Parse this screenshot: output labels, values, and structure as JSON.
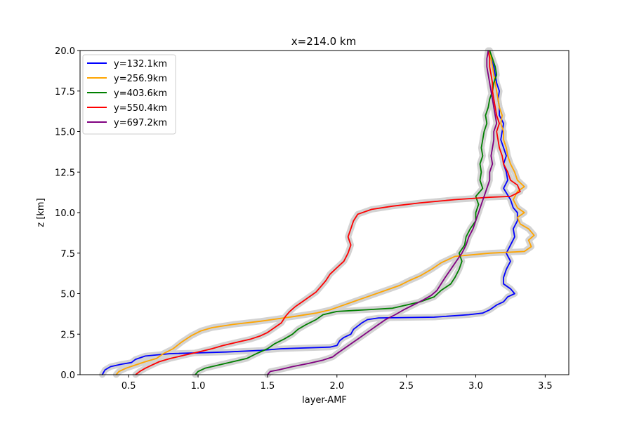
{
  "chart_data": {
    "type": "line",
    "title": "x=214.0 km",
    "xlabel": "layer-AMF",
    "ylabel": "z [km]",
    "xlim": [
      0.15,
      3.67
    ],
    "ylim": [
      0,
      20
    ],
    "xticks": [
      0.5,
      1.0,
      1.5,
      2.0,
      2.5,
      3.0,
      3.5
    ],
    "xtick_labels": [
      "0.5",
      "1.0",
      "1.5",
      "2.0",
      "2.5",
      "3.0",
      "3.5"
    ],
    "yticks": [
      0,
      2.5,
      5,
      7.5,
      10,
      12.5,
      15,
      17.5,
      20
    ],
    "ytick_labels": [
      "0.0",
      "2.5",
      "5.0",
      "7.5",
      "10.0",
      "12.5",
      "15.0",
      "17.5",
      "20.0"
    ],
    "grid": false,
    "legend_position": "top-left",
    "uncertainty_band_color": "#d3d3d3",
    "series": [
      {
        "name": "y=132.1km",
        "color": "#0000ff",
        "points": [
          [
            0.31,
            0
          ],
          [
            0.33,
            0.3
          ],
          [
            0.37,
            0.5
          ],
          [
            0.45,
            0.65
          ],
          [
            0.52,
            0.75
          ],
          [
            0.55,
            0.95
          ],
          [
            0.62,
            1.15
          ],
          [
            0.8,
            1.3
          ],
          [
            1.2,
            1.4
          ],
          [
            1.45,
            1.5
          ],
          [
            1.6,
            1.6
          ],
          [
            1.95,
            1.7
          ],
          [
            2.0,
            1.8
          ],
          [
            2.02,
            2.1
          ],
          [
            2.05,
            2.3
          ],
          [
            2.1,
            2.5
          ],
          [
            2.12,
            2.8
          ],
          [
            2.15,
            3.0
          ],
          [
            2.18,
            3.2
          ],
          [
            2.22,
            3.4
          ],
          [
            2.3,
            3.5
          ],
          [
            2.7,
            3.55
          ],
          [
            2.95,
            3.7
          ],
          [
            3.05,
            3.8
          ],
          [
            3.1,
            4.0
          ],
          [
            3.15,
            4.3
          ],
          [
            3.2,
            4.5
          ],
          [
            3.23,
            4.8
          ],
          [
            3.28,
            5.0
          ],
          [
            3.25,
            5.3
          ],
          [
            3.2,
            5.6
          ],
          [
            3.2,
            6.0
          ],
          [
            3.22,
            6.5
          ],
          [
            3.25,
            7.0
          ],
          [
            3.22,
            7.5
          ],
          [
            3.25,
            8.0
          ],
          [
            3.28,
            8.5
          ],
          [
            3.27,
            9.0
          ],
          [
            3.3,
            9.5
          ],
          [
            3.3,
            10.0
          ],
          [
            3.27,
            10.3
          ],
          [
            3.25,
            10.8
          ],
          [
            3.2,
            11.5
          ],
          [
            3.23,
            12.0
          ],
          [
            3.22,
            12.5
          ],
          [
            3.2,
            13.0
          ],
          [
            3.22,
            13.5
          ],
          [
            3.2,
            14.0
          ],
          [
            3.18,
            14.5
          ],
          [
            3.19,
            15.0
          ],
          [
            3.2,
            15.5
          ],
          [
            3.17,
            16.0
          ],
          [
            3.17,
            16.5
          ],
          [
            3.16,
            17.0
          ],
          [
            3.17,
            17.5
          ],
          [
            3.15,
            18.0
          ],
          [
            3.14,
            18.5
          ],
          [
            3.13,
            19.0
          ],
          [
            3.11,
            19.5
          ],
          [
            3.1,
            20.0
          ]
        ]
      },
      {
        "name": "y=256.9km",
        "color": "#ffa500",
        "points": [
          [
            0.41,
            0
          ],
          [
            0.43,
            0.2
          ],
          [
            0.48,
            0.4
          ],
          [
            0.55,
            0.6
          ],
          [
            0.62,
            0.8
          ],
          [
            0.7,
            1.0
          ],
          [
            0.75,
            1.3
          ],
          [
            0.82,
            1.6
          ],
          [
            0.88,
            2.0
          ],
          [
            0.95,
            2.4
          ],
          [
            1.02,
            2.7
          ],
          [
            1.1,
            2.9
          ],
          [
            1.25,
            3.1
          ],
          [
            1.45,
            3.3
          ],
          [
            1.7,
            3.6
          ],
          [
            1.85,
            3.8
          ],
          [
            1.95,
            4.0
          ],
          [
            2.05,
            4.3
          ],
          [
            2.15,
            4.6
          ],
          [
            2.25,
            4.9
          ],
          [
            2.35,
            5.2
          ],
          [
            2.45,
            5.5
          ],
          [
            2.52,
            5.8
          ],
          [
            2.6,
            6.1
          ],
          [
            2.68,
            6.5
          ],
          [
            2.75,
            6.9
          ],
          [
            2.85,
            7.3
          ],
          [
            3.1,
            7.5
          ],
          [
            3.35,
            7.6
          ],
          [
            3.4,
            7.9
          ],
          [
            3.38,
            8.3
          ],
          [
            3.42,
            8.6
          ],
          [
            3.38,
            9.0
          ],
          [
            3.32,
            9.3
          ],
          [
            3.3,
            9.7
          ],
          [
            3.35,
            10.0
          ],
          [
            3.3,
            10.3
          ],
          [
            3.27,
            10.8
          ],
          [
            3.3,
            11.3
          ],
          [
            3.35,
            11.6
          ],
          [
            3.3,
            12.0
          ],
          [
            3.28,
            12.5
          ],
          [
            3.25,
            13.0
          ],
          [
            3.23,
            13.5
          ],
          [
            3.22,
            14.0
          ],
          [
            3.2,
            14.5
          ],
          [
            3.2,
            15.0
          ],
          [
            3.18,
            15.5
          ],
          [
            3.19,
            16.0
          ],
          [
            3.17,
            16.5
          ],
          [
            3.16,
            17.0
          ],
          [
            3.15,
            17.5
          ],
          [
            3.14,
            18.0
          ],
          [
            3.13,
            18.5
          ],
          [
            3.12,
            19.0
          ],
          [
            3.11,
            19.5
          ],
          [
            3.1,
            20.0
          ]
        ]
      },
      {
        "name": "y=403.6km",
        "color": "#008000",
        "points": [
          [
            0.98,
            0
          ],
          [
            1.0,
            0.2
          ],
          [
            1.05,
            0.4
          ],
          [
            1.15,
            0.6
          ],
          [
            1.25,
            0.8
          ],
          [
            1.35,
            1.0
          ],
          [
            1.42,
            1.3
          ],
          [
            1.5,
            1.6
          ],
          [
            1.55,
            1.9
          ],
          [
            1.62,
            2.2
          ],
          [
            1.68,
            2.5
          ],
          [
            1.72,
            2.8
          ],
          [
            1.78,
            3.1
          ],
          [
            1.85,
            3.4
          ],
          [
            1.9,
            3.7
          ],
          [
            2.0,
            3.9
          ],
          [
            2.2,
            4.0
          ],
          [
            2.4,
            4.1
          ],
          [
            2.5,
            4.3
          ],
          [
            2.6,
            4.5
          ],
          [
            2.7,
            4.8
          ],
          [
            2.75,
            5.2
          ],
          [
            2.82,
            5.6
          ],
          [
            2.85,
            6.0
          ],
          [
            2.88,
            6.5
          ],
          [
            2.9,
            7.0
          ],
          [
            2.88,
            7.5
          ],
          [
            2.92,
            8.0
          ],
          [
            2.93,
            8.5
          ],
          [
            2.96,
            9.0
          ],
          [
            3.0,
            9.5
          ],
          [
            3.0,
            10.0
          ],
          [
            3.02,
            10.5
          ],
          [
            3.0,
            11.0
          ],
          [
            3.05,
            11.5
          ],
          [
            3.03,
            12.0
          ],
          [
            3.04,
            12.5
          ],
          [
            3.03,
            13.0
          ],
          [
            3.05,
            13.5
          ],
          [
            3.04,
            14.0
          ],
          [
            3.05,
            14.5
          ],
          [
            3.06,
            15.0
          ],
          [
            3.08,
            15.5
          ],
          [
            3.07,
            16.0
          ],
          [
            3.09,
            16.5
          ],
          [
            3.1,
            17.0
          ],
          [
            3.12,
            17.5
          ],
          [
            3.13,
            18.0
          ],
          [
            3.15,
            18.5
          ],
          [
            3.14,
            19.0
          ],
          [
            3.12,
            19.5
          ],
          [
            3.1,
            20.0
          ]
        ]
      },
      {
        "name": "y=550.4km",
        "color": "#ff0000",
        "points": [
          [
            0.55,
            0
          ],
          [
            0.58,
            0.2
          ],
          [
            0.62,
            0.4
          ],
          [
            0.67,
            0.6
          ],
          [
            0.72,
            0.8
          ],
          [
            0.8,
            1.0
          ],
          [
            0.9,
            1.2
          ],
          [
            1.0,
            1.4
          ],
          [
            1.1,
            1.6
          ],
          [
            1.18,
            1.8
          ],
          [
            1.28,
            2.0
          ],
          [
            1.38,
            2.2
          ],
          [
            1.45,
            2.4
          ],
          [
            1.5,
            2.6
          ],
          [
            1.55,
            2.9
          ],
          [
            1.6,
            3.2
          ],
          [
            1.63,
            3.6
          ],
          [
            1.66,
            3.9
          ],
          [
            1.7,
            4.2
          ],
          [
            1.75,
            4.5
          ],
          [
            1.8,
            4.8
          ],
          [
            1.85,
            5.1
          ],
          [
            1.88,
            5.4
          ],
          [
            1.92,
            5.8
          ],
          [
            1.95,
            6.2
          ],
          [
            2.0,
            6.6
          ],
          [
            2.05,
            7.0
          ],
          [
            2.08,
            7.5
          ],
          [
            2.1,
            8.0
          ],
          [
            2.08,
            8.5
          ],
          [
            2.1,
            9.0
          ],
          [
            2.12,
            9.5
          ],
          [
            2.15,
            9.9
          ],
          [
            2.25,
            10.2
          ],
          [
            2.4,
            10.4
          ],
          [
            2.6,
            10.6
          ],
          [
            2.85,
            10.8
          ],
          [
            3.1,
            10.95
          ],
          [
            3.25,
            11.0
          ],
          [
            3.32,
            11.3
          ],
          [
            3.3,
            11.7
          ],
          [
            3.25,
            12.0
          ],
          [
            3.23,
            12.5
          ],
          [
            3.2,
            13.0
          ],
          [
            3.19,
            13.5
          ],
          [
            3.17,
            14.0
          ],
          [
            3.16,
            14.5
          ],
          [
            3.15,
            15.0
          ],
          [
            3.17,
            15.5
          ],
          [
            3.15,
            16.0
          ],
          [
            3.14,
            16.5
          ],
          [
            3.13,
            17.0
          ],
          [
            3.12,
            17.5
          ],
          [
            3.12,
            18.0
          ],
          [
            3.11,
            18.5
          ],
          [
            3.1,
            19.0
          ],
          [
            3.1,
            19.5
          ],
          [
            3.09,
            20.0
          ]
        ]
      },
      {
        "name": "y=697.2km",
        "color": "#800080",
        "points": [
          [
            1.5,
            0
          ],
          [
            1.52,
            0.2
          ],
          [
            1.58,
            0.3
          ],
          [
            1.68,
            0.5
          ],
          [
            1.8,
            0.7
          ],
          [
            1.9,
            0.9
          ],
          [
            1.97,
            1.1
          ],
          [
            2.0,
            1.3
          ],
          [
            2.05,
            1.6
          ],
          [
            2.1,
            1.9
          ],
          [
            2.15,
            2.2
          ],
          [
            2.2,
            2.5
          ],
          [
            2.25,
            2.8
          ],
          [
            2.3,
            3.1
          ],
          [
            2.35,
            3.4
          ],
          [
            2.42,
            3.7
          ],
          [
            2.48,
            4.0
          ],
          [
            2.55,
            4.3
          ],
          [
            2.62,
            4.6
          ],
          [
            2.68,
            4.9
          ],
          [
            2.72,
            5.2
          ],
          [
            2.75,
            5.6
          ],
          [
            2.78,
            6.0
          ],
          [
            2.82,
            6.5
          ],
          [
            2.86,
            7.0
          ],
          [
            2.9,
            7.5
          ],
          [
            2.93,
            8.0
          ],
          [
            2.95,
            8.5
          ],
          [
            2.98,
            9.0
          ],
          [
            3.0,
            9.5
          ],
          [
            3.02,
            10.0
          ],
          [
            3.04,
            10.5
          ],
          [
            3.06,
            11.0
          ],
          [
            3.08,
            11.5
          ],
          [
            3.1,
            12.0
          ],
          [
            3.1,
            12.5
          ],
          [
            3.12,
            13.0
          ],
          [
            3.11,
            13.5
          ],
          [
            3.12,
            14.0
          ],
          [
            3.13,
            14.5
          ],
          [
            3.13,
            15.0
          ],
          [
            3.15,
            15.5
          ],
          [
            3.14,
            16.0
          ],
          [
            3.13,
            16.5
          ],
          [
            3.12,
            17.0
          ],
          [
            3.11,
            17.5
          ],
          [
            3.1,
            18.0
          ],
          [
            3.09,
            18.5
          ],
          [
            3.08,
            19.0
          ],
          [
            3.08,
            19.5
          ],
          [
            3.09,
            20.0
          ]
        ]
      }
    ]
  }
}
